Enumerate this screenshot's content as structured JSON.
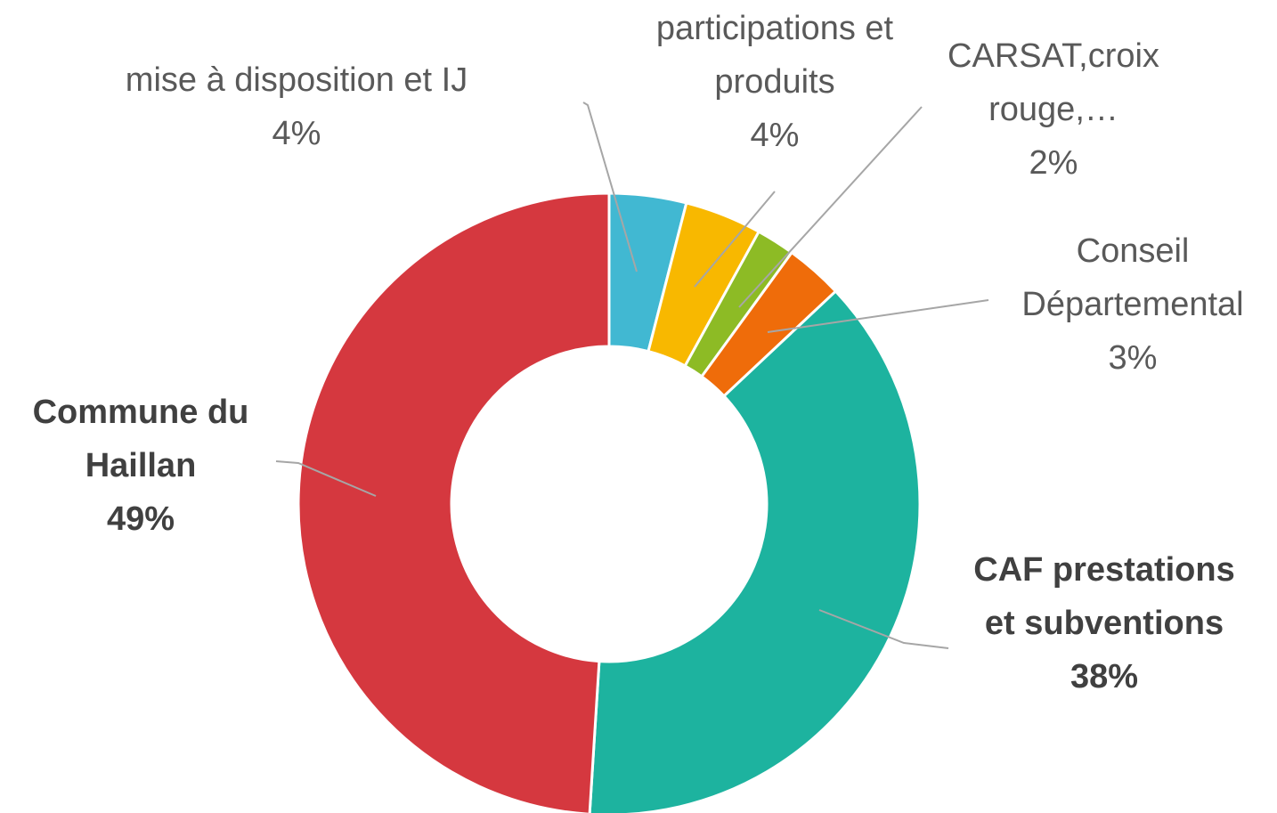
{
  "chart_data": {
    "type": "donut",
    "categories": [
      "mise à disposition et IJ",
      "participations et produits",
      "CARSAT,croix rouge,…",
      "Conseil Départemental",
      "CAF prestations et subventions",
      "Commune du Haillan"
    ],
    "values": [
      4,
      4,
      2,
      3,
      38,
      49
    ],
    "value_labels": [
      "4%",
      "4%",
      "2%",
      "3%",
      "38%",
      "49%"
    ],
    "colors": [
      "#41b8d2",
      "#f8b800",
      "#8dbb25",
      "#ef6c0a",
      "#1db39f",
      "#d5383f"
    ]
  }
}
